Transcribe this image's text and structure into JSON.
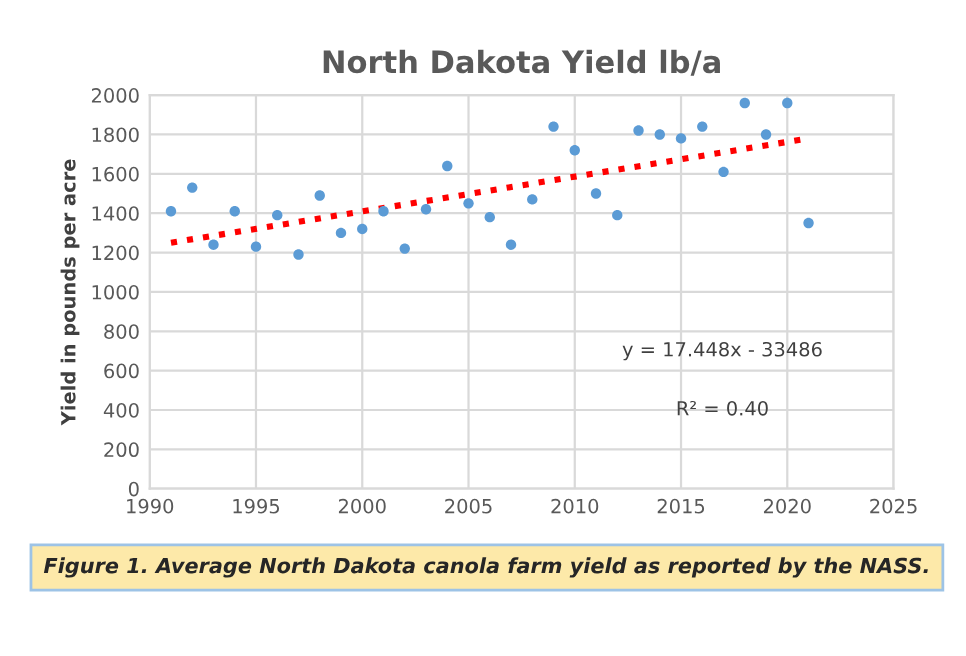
{
  "chart_data": {
    "type": "scatter",
    "title": "North Dakota Yield lb/a",
    "ylabel": "Yield in pounds per acre",
    "x": [
      1991,
      1992,
      1993,
      1994,
      1995,
      1996,
      1997,
      1998,
      1999,
      2000,
      2001,
      2002,
      2003,
      2004,
      2005,
      2006,
      2007,
      2008,
      2009,
      2010,
      2011,
      2012,
      2013,
      2014,
      2015,
      2016,
      2017,
      2018,
      2019,
      2020,
      2021
    ],
    "series": [
      {
        "color": "#5b9bd5",
        "marker": "circle",
        "values": [
          1410,
          1530,
          1240,
          1410,
          1230,
          1390,
          1190,
          1490,
          1300,
          1320,
          1410,
          1220,
          1420,
          1640,
          1450,
          1380,
          1240,
          1470,
          1840,
          1720,
          1500,
          1390,
          1820,
          1800,
          1780,
          1840,
          1610,
          1960,
          1800,
          1960,
          1350
        ]
      },
      {
        "type": "line",
        "color": "#ff0000",
        "line_style": "dotted",
        "x": [
          1991,
          2021
        ],
        "values": [
          1250,
          1780
        ]
      }
    ],
    "xlim": [
      1990,
      2025
    ],
    "xticks": [
      1990,
      1995,
      2000,
      2005,
      2010,
      2015,
      2020,
      2025
    ],
    "ylim": [
      0,
      2000
    ],
    "yticks": [
      0,
      200,
      400,
      600,
      800,
      1000,
      1200,
      1400,
      1600,
      1800,
      2000
    ],
    "grid": true,
    "legend": false,
    "annotations": [
      "y = 17.448x - 33486",
      "R² = 0.40",
      "Figure 1. Average North Dakota canola farm yield as reported by the NASS."
    ]
  }
}
